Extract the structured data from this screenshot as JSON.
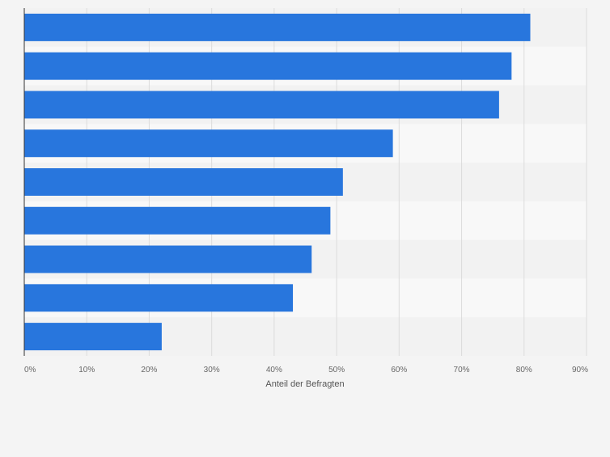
{
  "chart_data": {
    "type": "bar",
    "orientation": "horizontal",
    "title": "",
    "xlabel": "Anteil der Befragten",
    "ylabel": "",
    "categories": [
      "",
      "",
      "",
      "",
      "",
      "",
      "",
      "",
      ""
    ],
    "values": [
      81,
      78,
      76,
      59,
      51,
      49,
      46,
      43,
      22
    ],
    "xlim": [
      0,
      90
    ],
    "xticks": [
      "0%",
      "10%",
      "20%",
      "30%",
      "40%",
      "50%",
      "60%",
      "70%",
      "80%",
      "90%"
    ],
    "grid": true,
    "legend": "none"
  },
  "colors": {
    "bar": "#2876dd",
    "band_dark": "#f2f2f2",
    "band_light": "#f8f8f8",
    "grid": "#dcdcdc",
    "axis": "#333333",
    "tick_text": "#666666"
  }
}
